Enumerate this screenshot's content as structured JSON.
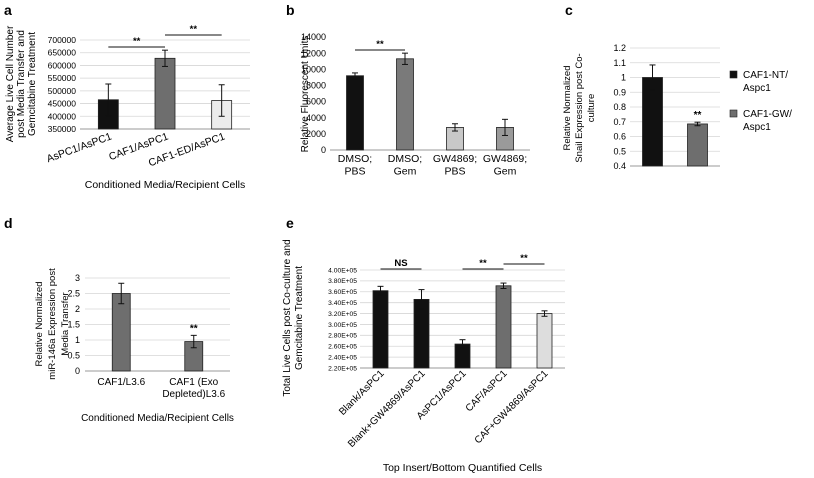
{
  "chart_data": [
    {
      "panel": "a",
      "type": "bar",
      "categories": [
        "AsPC1/AsPC1",
        "CAF1/AsPC1",
        "CAF1-ED/AsPC1"
      ],
      "values": [
        465000,
        628000,
        462000
      ],
      "errors": [
        62000,
        32000,
        62000
      ],
      "colors": [
        "#111111",
        "#6e6e6e",
        "#ececec"
      ],
      "ylabel": [
        "Average Live Cell Number",
        "post Media Transfer and",
        "Gemcitabine Treatment"
      ],
      "xlabel": "Conditioned Media/Recipient Cells",
      "ylim": [
        350000,
        700000
      ],
      "yticks": [
        350000,
        400000,
        450000,
        500000,
        550000,
        600000,
        650000,
        700000
      ],
      "significance": [
        {
          "from": 0,
          "to": 1,
          "label": "**"
        },
        {
          "from": 1,
          "to": 2,
          "label": "**"
        }
      ],
      "grid": true
    },
    {
      "panel": "b",
      "type": "bar",
      "categories": [
        [
          "DMSO;",
          "PBS"
        ],
        [
          "DMSO;",
          "Gem"
        ],
        [
          "GW4869;",
          "PBS"
        ],
        [
          "GW4869;",
          "Gem"
        ]
      ],
      "values": [
        9200,
        11300,
        2800,
        2800
      ],
      "errors": [
        350,
        700,
        450,
        1000
      ],
      "colors": [
        "#111111",
        "#7a7a7a",
        "#c8c8c8",
        "#9a9a9a"
      ],
      "ylabel": "Relative Fluorescent Units",
      "ylim": [
        0,
        14000
      ],
      "yticks": [
        0,
        2000,
        4000,
        6000,
        8000,
        10000,
        12000,
        14000
      ],
      "significance": [
        {
          "from": 0,
          "to": 1,
          "label": "**"
        }
      ],
      "grid": false
    },
    {
      "panel": "c",
      "type": "bar",
      "categories": [
        "",
        ""
      ],
      "values": [
        1.0,
        0.685
      ],
      "errors": [
        0.085,
        0.012
      ],
      "colors": [
        "#111111",
        "#6e6e6e"
      ],
      "ylabel": [
        "Relative Normalized",
        "Snail Expression post Co-",
        "culture"
      ],
      "ylim": [
        0.4,
        1.2
      ],
      "yticks": [
        0.4,
        0.5,
        0.6,
        0.7,
        0.8,
        0.9,
        1,
        1.1,
        1.2
      ],
      "legend": [
        {
          "lines": [
            "CAF1-NT/",
            "Aspc1"
          ],
          "color": "#111111"
        },
        {
          "lines": [
            "CAF1-GW/",
            "Aspc1"
          ],
          "color": "#6e6e6e"
        }
      ],
      "annotations": [
        {
          "bar": 1,
          "label": "**"
        }
      ],
      "grid": true
    },
    {
      "panel": "d",
      "type": "bar",
      "categories": [
        [
          "CAF1/L3.6"
        ],
        [
          "CAF1 (Exo",
          "Depleted)L3.6"
        ]
      ],
      "values": [
        2.5,
        0.95
      ],
      "errors": [
        0.33,
        0.2
      ],
      "colors": [
        "#6e6e6e",
        "#6e6e6e"
      ],
      "ylabel": [
        "Relative Normalized",
        "miR-146a Expression post",
        "Media Transfer"
      ],
      "xlabel": "Conditioned Media/Recipient Cells",
      "ylim": [
        0,
        3
      ],
      "yticks": [
        0,
        0.5,
        1,
        1.5,
        2,
        2.5,
        3
      ],
      "annotations": [
        {
          "bar": 1,
          "label": "**"
        }
      ],
      "grid": true
    },
    {
      "panel": "e",
      "type": "bar",
      "categories": [
        "Blank/AsPC1",
        "Blank+GW4869/AsPC1",
        "AsPC1/AsPC1",
        "CAF/AsPC1",
        "CAF+GW4869/AsPC1"
      ],
      "values": [
        362000,
        346000,
        264000,
        371000,
        320000
      ],
      "errors": [
        8000,
        18000,
        8000,
        5000,
        5000
      ],
      "colors": [
        "#111111",
        "#111111",
        "#111111",
        "#6e6e6e",
        "#dddddd"
      ],
      "ylabel": [
        "Total Live Cells post Co-culture and",
        "Gemcitabine Treatment"
      ],
      "xlabel": "Top Insert/Bottom Quantified Cells",
      "ylim": [
        220000,
        400000
      ],
      "yticks": [
        220000,
        240000,
        260000,
        280000,
        300000,
        320000,
        340000,
        360000,
        380000,
        400000
      ],
      "ytick_labels": [
        "2.20E+05",
        "2.40E+05",
        "2.60E+05",
        "2.80E+05",
        "3.00E+05",
        "3.20E+05",
        "3.40E+05",
        "3.60E+05",
        "3.80E+05",
        "4.00E+05"
      ],
      "significance": [
        {
          "from": 0,
          "to": 1,
          "label": "NS"
        },
        {
          "from": 2,
          "to": 3,
          "label": "**"
        },
        {
          "from": 3,
          "to": 4,
          "label": "**"
        }
      ],
      "grid": true
    }
  ]
}
